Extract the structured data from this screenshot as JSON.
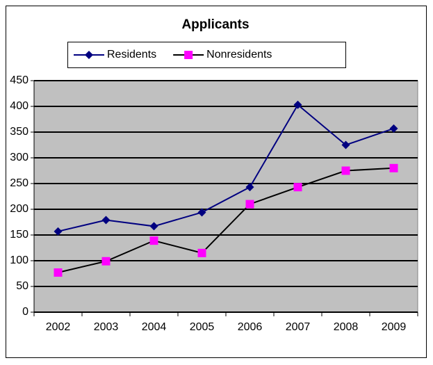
{
  "chart_data": {
    "type": "line",
    "title": "Applicants",
    "categories": [
      "2002",
      "2003",
      "2004",
      "2005",
      "2006",
      "2007",
      "2008",
      "2009"
    ],
    "series": [
      {
        "name": "Residents",
        "color": "#000080",
        "marker_color": "#000080",
        "marker": "diamond",
        "values": [
          157,
          179,
          167,
          194,
          243,
          403,
          325,
          357
        ]
      },
      {
        "name": "Nonresidents",
        "color": "#000000",
        "marker_color": "#ff00ff",
        "marker": "square",
        "values": [
          77,
          99,
          139,
          115,
          210,
          243,
          275,
          280
        ]
      }
    ],
    "ylim": [
      0,
      450
    ],
    "yticks": [
      0,
      50,
      100,
      150,
      200,
      250,
      300,
      350,
      400,
      450
    ],
    "grid": true,
    "legend": "top",
    "plot_background": "#c0c0c0"
  }
}
